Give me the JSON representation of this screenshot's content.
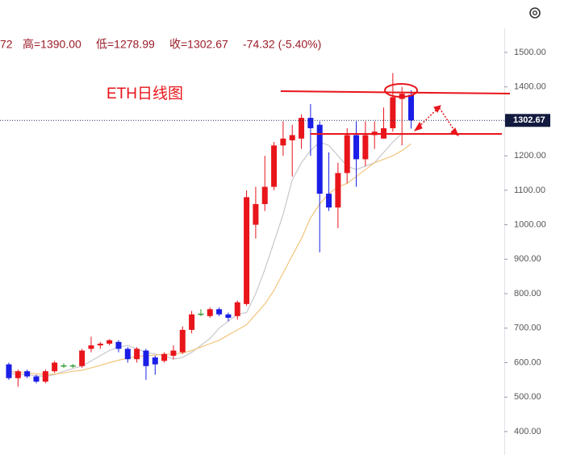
{
  "header": {
    "open_tail": "72",
    "high": "高=1390.00",
    "low": "低=1278.99",
    "close": "收=1302.67",
    "change": "-74.32 (-5.40%)"
  },
  "chart_data": {
    "type": "candlestick",
    "annotation": "ETH日线图",
    "last_price": 1302.67,
    "last_price_label": "1302.67",
    "up_color": "#e8151b",
    "down_color": "#1a1ee6",
    "flat_color": "#2e9a2e",
    "ylim": [
      332,
      1652
    ],
    "yticks": [
      {
        "value": 400,
        "label": "400.00"
      },
      {
        "value": 500,
        "label": "500.00"
      },
      {
        "value": 600,
        "label": "600.00"
      },
      {
        "value": 700,
        "label": "700.00"
      },
      {
        "value": 800,
        "label": "800.00"
      },
      {
        "value": 900,
        "label": "900.00"
      },
      {
        "value": 1000,
        "label": "1000.00"
      },
      {
        "value": 1100,
        "label": "1100.00"
      },
      {
        "value": 1200,
        "label": "1200.00"
      },
      {
        "value": 1300,
        "label": "1300.00"
      },
      {
        "value": 1400,
        "label": "1400.00"
      },
      {
        "value": 1500,
        "label": "1500.00"
      }
    ],
    "open": [
      595,
      555,
      575,
      560,
      545,
      575,
      590,
      590,
      590,
      640,
      650,
      655,
      660,
      640,
      610,
      635,
      615,
      605,
      620,
      630,
      695,
      740,
      735,
      755,
      740,
      735,
      770,
      1000,
      1060,
      1110,
      1230,
      1245,
      1250,
      1310,
      1290,
      1090,
      1050,
      1150,
      1260,
      1190,
      1260,
      1250,
      1280,
      1365,
      1376.99
    ],
    "high": [
      600,
      580,
      580,
      565,
      580,
      605,
      598,
      596,
      640,
      675,
      660,
      668,
      665,
      645,
      645,
      640,
      620,
      630,
      650,
      705,
      750,
      755,
      760,
      760,
      745,
      780,
      1100,
      1110,
      1200,
      1240,
      1300,
      1290,
      1320,
      1350,
      1300,
      1210,
      1180,
      1280,
      1300,
      1300,
      1300,
      1340,
      1440,
      1400,
      1390
    ],
    "low": [
      550,
      530,
      555,
      540,
      540,
      570,
      585,
      585,
      585,
      630,
      640,
      650,
      630,
      600,
      600,
      550,
      565,
      600,
      610,
      625,
      685,
      735,
      730,
      735,
      720,
      725,
      765,
      960,
      1040,
      1100,
      1200,
      1140,
      1220,
      1200,
      920,
      1040,
      990,
      1120,
      1110,
      1170,
      1220,
      1250,
      1270,
      1230,
      1278.99
    ],
    "close": [
      555,
      575,
      560,
      545,
      575,
      600,
      592,
      592,
      635,
      650,
      655,
      665,
      640,
      610,
      640,
      590,
      595,
      625,
      635,
      695,
      740,
      742,
      755,
      740,
      730,
      775,
      1080,
      1060,
      1110,
      1230,
      1250,
      1260,
      1310,
      1280,
      1090,
      1050,
      1150,
      1260,
      1190,
      1260,
      1270,
      1280,
      1370,
      1380,
      1302.67
    ],
    "series": [
      {
        "color": "#c8c8cc",
        "values": [
          570,
          565,
          565,
          562,
          560,
          565,
          575,
          583,
          590,
          605,
          620,
          635,
          645,
          650,
          640,
          630,
          625,
          620,
          610,
          615,
          630,
          650,
          670,
          700,
          720,
          740,
          745,
          800,
          870,
          950,
          1030,
          1130,
          1180,
          1215,
          1240,
          1230,
          1200,
          1170,
          1160,
          1170,
          1180,
          1210,
          1240,
          1265,
          null
        ]
      },
      {
        "color": "#f2c57c",
        "values": [
          575,
          572,
          570,
          568,
          565,
          567,
          570,
          575,
          578,
          585,
          592,
          600,
          607,
          613,
          618,
          620,
          622,
          624,
          625,
          628,
          635,
          645,
          655,
          665,
          680,
          695,
          710,
          740,
          770,
          810,
          860,
          910,
          960,
          1020,
          1060,
          1090,
          1110,
          1120,
          1140,
          1160,
          1180,
          1190,
          1200,
          1215,
          1235
        ]
      }
    ]
  }
}
